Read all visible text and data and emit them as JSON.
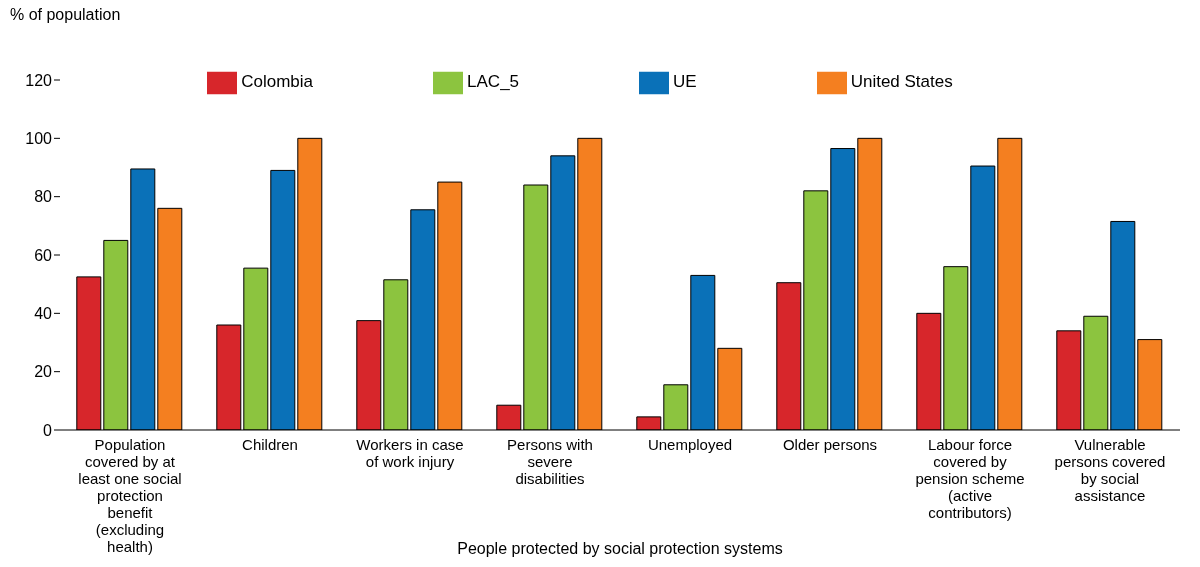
{
  "chart_data": {
    "type": "bar",
    "ylabel": "% of population",
    "xlabel": "People protected by social protection systems",
    "categories": [
      "Population covered by at least one social protection benefit (excluding health)",
      "Children",
      "Workers in case of work injury",
      "Persons with severe disabilities",
      "Unemployed",
      "Older persons",
      "Labour force covered by pension scheme (active contributors)",
      "Vulnerable persons covered by social assistance"
    ],
    "series": [
      {
        "name": "Colombia",
        "color": "#d7262b",
        "values": [
          52.5,
          36,
          37.5,
          8.5,
          4.5,
          50.5,
          40,
          34
        ]
      },
      {
        "name": "LAC_5",
        "color": "#8cc43f",
        "values": [
          65,
          55.5,
          51.5,
          84,
          15.5,
          82,
          56,
          39
        ]
      },
      {
        "name": "UE",
        "color": "#0a71b8",
        "values": [
          89.5,
          89,
          75.5,
          94,
          53,
          96.5,
          90.5,
          71.5
        ]
      },
      {
        "name": "United States",
        "color": "#f47f20",
        "values": [
          76,
          100,
          85,
          100,
          28,
          100,
          100,
          31
        ]
      }
    ],
    "ylim": [
      0,
      120
    ],
    "yticks": [
      0,
      20,
      40,
      60,
      80,
      100,
      120
    ],
    "grid": false,
    "legend": "top"
  }
}
